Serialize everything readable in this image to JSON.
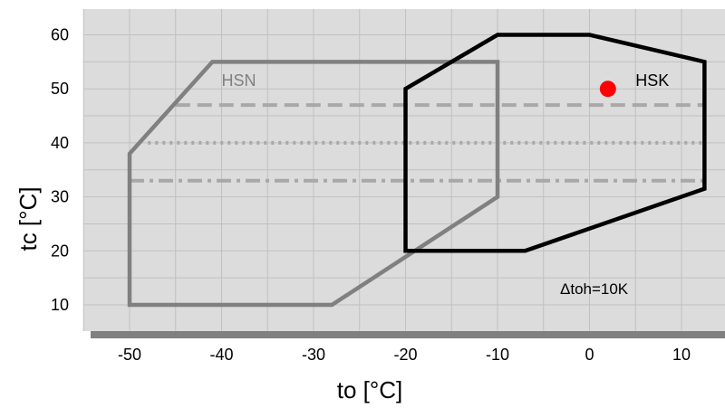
{
  "chart_data": {
    "type": "line",
    "xlabel": "to [°C]",
    "ylabel": "tc [°C]",
    "xlim": [
      -55,
      15
    ],
    "ylim": [
      4,
      65
    ],
    "xticks": [
      -50,
      -40,
      -30,
      -20,
      -10,
      0,
      10
    ],
    "yticks": [
      10,
      20,
      30,
      40,
      50,
      60
    ],
    "grid": true,
    "background_color": "#dcdcdc",
    "grid_color": "#c0c0c0",
    "series": [
      {
        "name": "HSN",
        "color": "#808080",
        "closed": true,
        "x": [
          -50,
          -41,
          -10,
          -10,
          -28,
          -50
        ],
        "y": [
          38,
          55,
          55,
          30,
          10,
          10
        ]
      },
      {
        "name": "HSK",
        "color": "#000000",
        "closed": true,
        "x": [
          -20,
          -10,
          0,
          12.5,
          12.5,
          -7,
          -20
        ],
        "y": [
          50,
          60,
          60,
          55,
          31.5,
          20,
          20
        ]
      }
    ],
    "reference_lines": [
      {
        "y": 47,
        "x_start": -45,
        "x_end": 12.5,
        "style": "dashed",
        "color": "#a8a8a8"
      },
      {
        "y": 40,
        "x_start": -48,
        "x_end": 12.5,
        "style": "dotted",
        "color": "#a8a8a8"
      },
      {
        "y": 33,
        "x_start": -50,
        "x_end": 12.5,
        "style": "dashdot",
        "color": "#a8a8a8"
      }
    ],
    "points": [
      {
        "x": 2,
        "y": 50,
        "color": "#ff0000"
      }
    ],
    "series_labels": [
      {
        "text": "HSN",
        "x": -40,
        "y": 51.5,
        "color": "#808080"
      },
      {
        "text": "HSK",
        "x": 5,
        "y": 51.5,
        "color": "#000000"
      }
    ],
    "annotation": {
      "text": "Δtoh=10K",
      "x": 0.5,
      "y": 13
    }
  }
}
